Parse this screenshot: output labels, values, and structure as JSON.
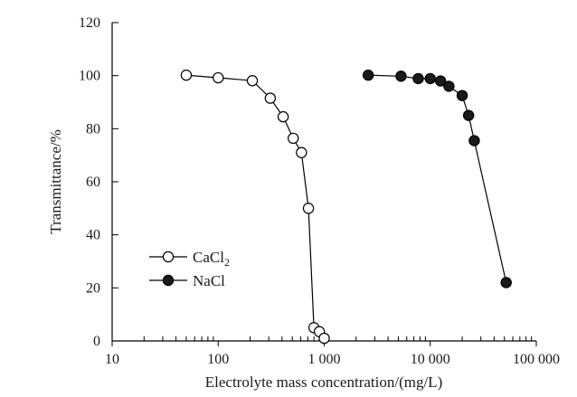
{
  "chart_data": {
    "type": "scatter",
    "x_scale": "log",
    "xlim": [
      10,
      100000
    ],
    "ylim": [
      0,
      120
    ],
    "x_ticks": [
      10,
      100,
      1000,
      10000,
      100000
    ],
    "x_tick_labels": [
      "10",
      "100",
      "1 000",
      "10 000",
      "100 000"
    ],
    "y_ticks": [
      0,
      20,
      40,
      60,
      80,
      100,
      120
    ],
    "y_tick_labels": [
      "0",
      "20",
      "40",
      "60",
      "80",
      "100",
      "120"
    ],
    "xlabel": "Electrolyte mass concentration/(mg/L)",
    "ylabel": "Transmittance/%",
    "grid": false,
    "legend_position": "lower-left",
    "series": [
      {
        "name": "CaCl",
        "name_subscript": "2",
        "marker": "open-circle",
        "x": [
          50,
          100,
          210,
          310,
          410,
          510,
          610,
          710,
          800,
          900,
          1000
        ],
        "y": [
          100.2,
          99.2,
          98.1,
          91.5,
          84.5,
          76.4,
          71,
          50,
          5,
          3.5,
          1
        ]
      },
      {
        "name": "NaCl",
        "marker": "filled-circle",
        "x": [
          2600,
          5300,
          7700,
          10000,
          12500,
          15000,
          20000,
          23000,
          26000,
          52000
        ],
        "y": [
          100.2,
          99.8,
          98.9,
          98.9,
          98,
          96,
          92.5,
          85,
          75.5,
          22
        ]
      }
    ]
  }
}
